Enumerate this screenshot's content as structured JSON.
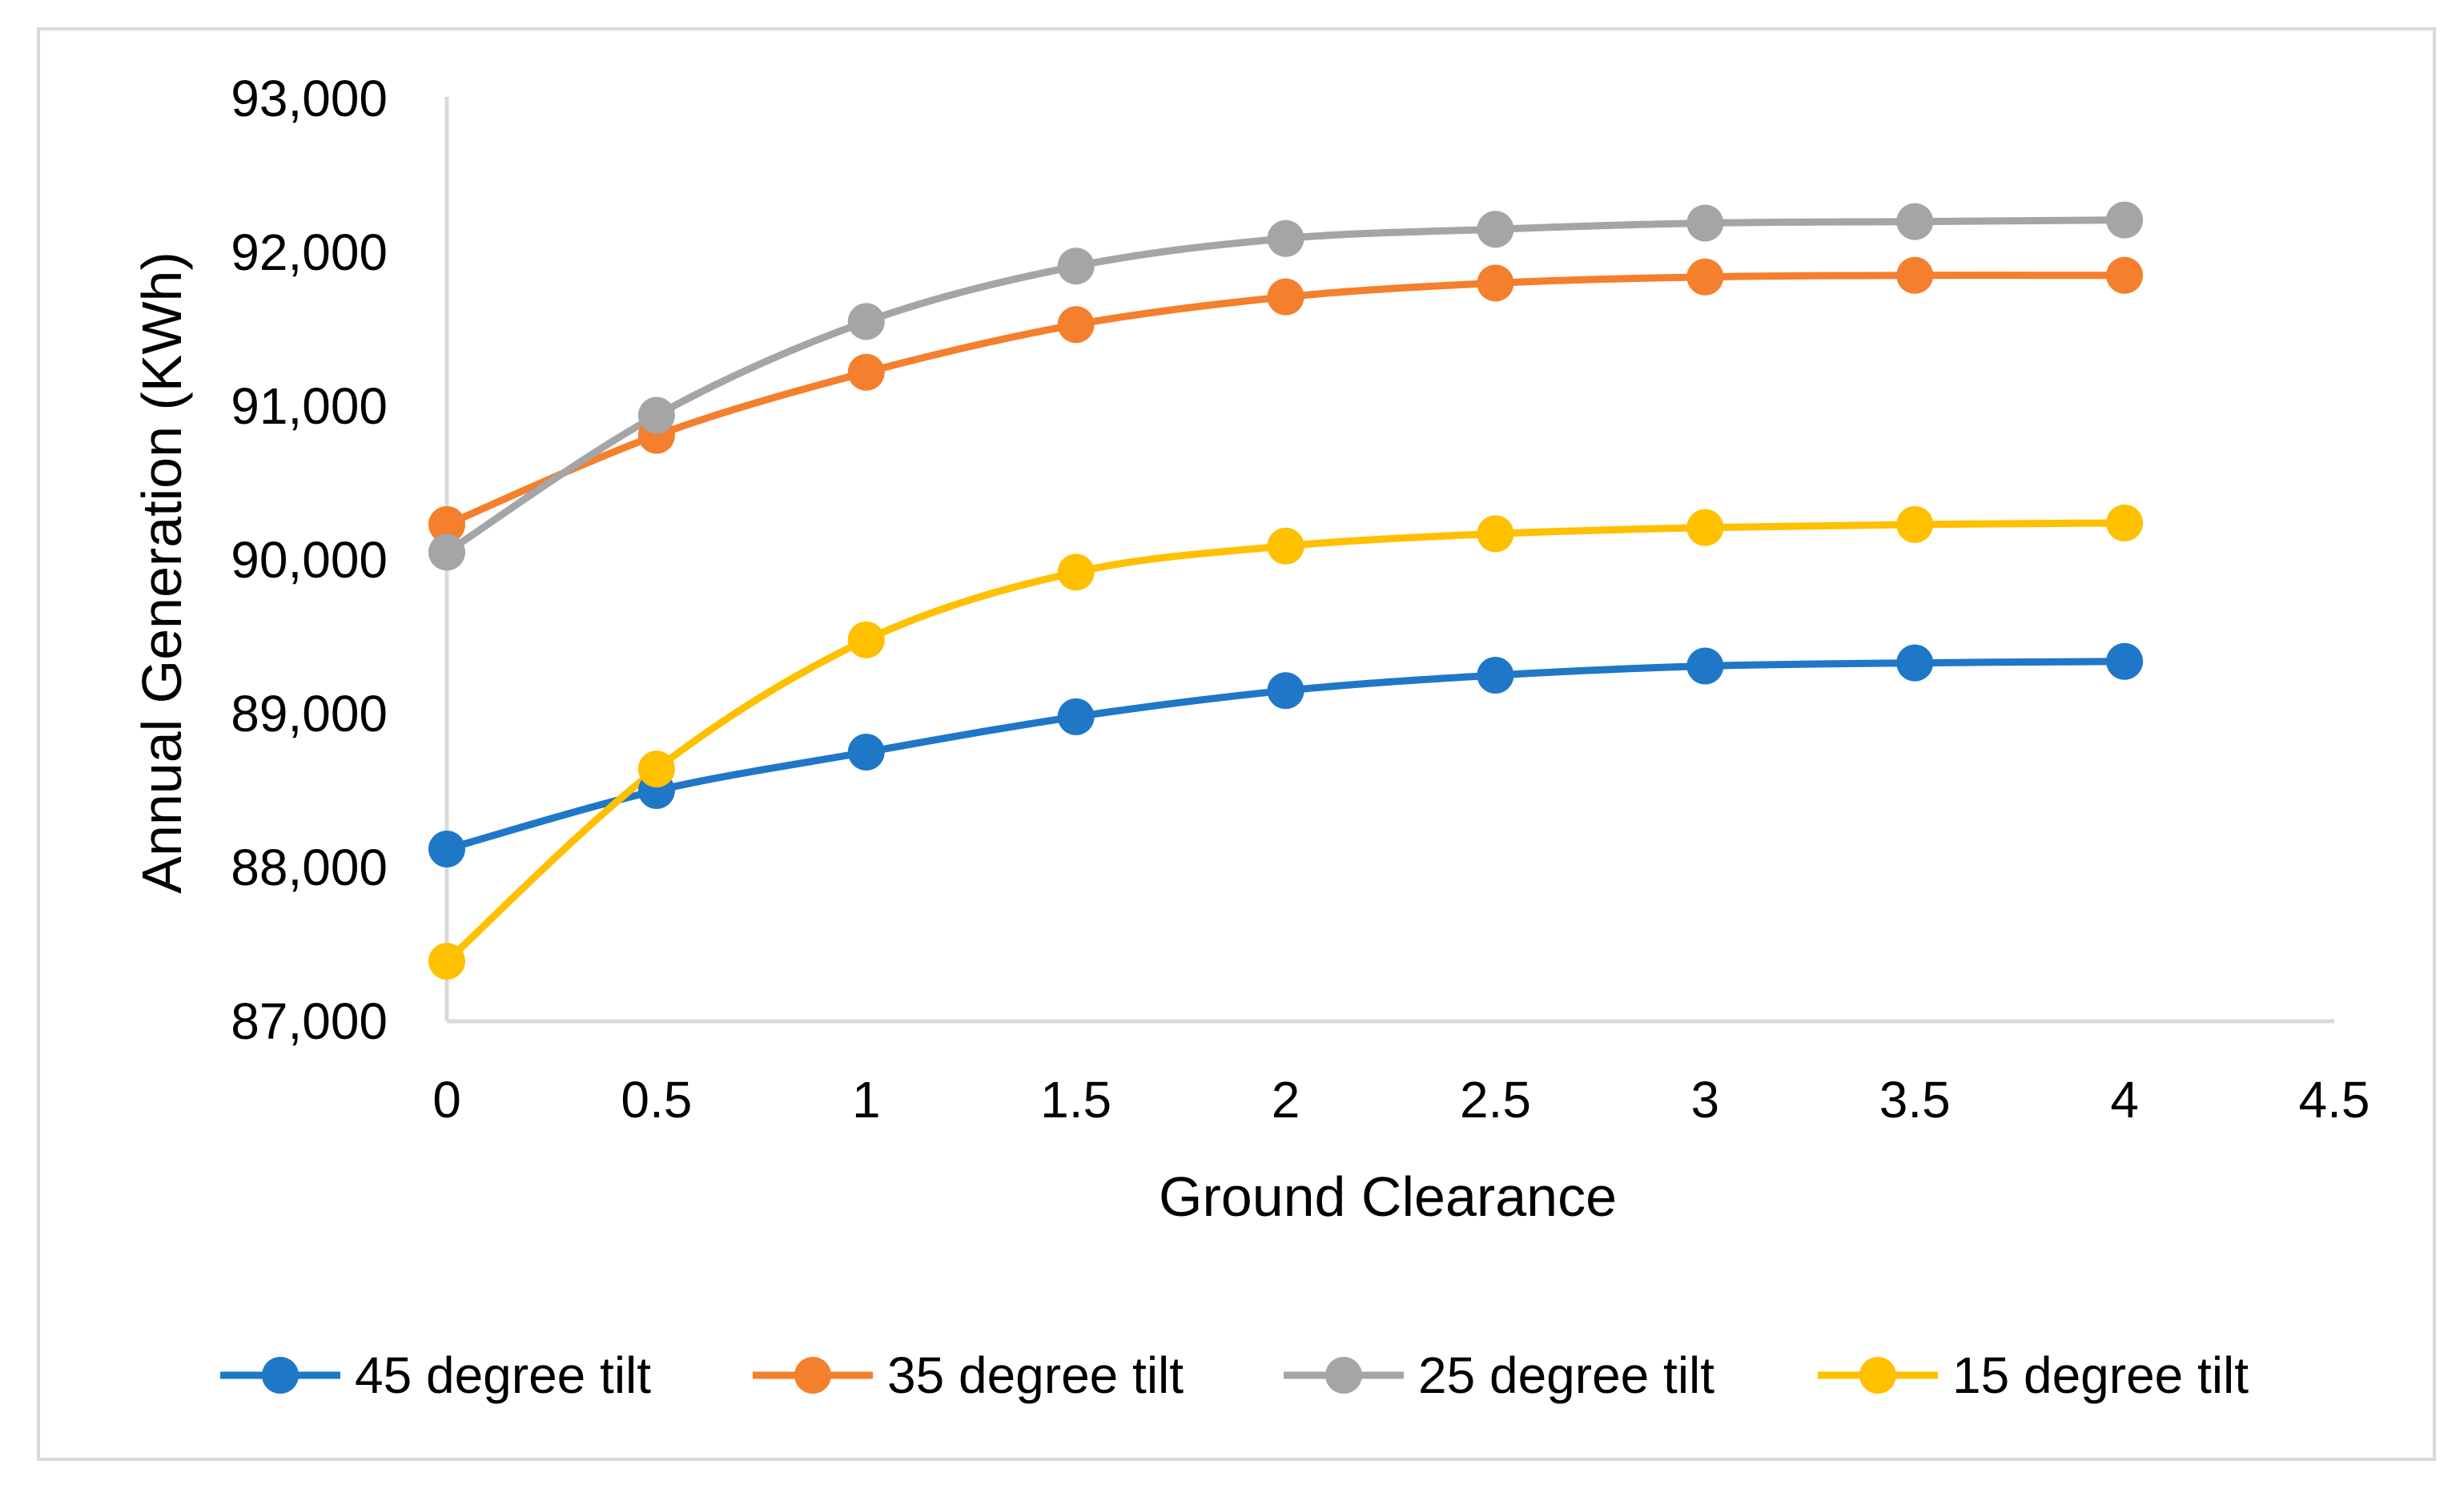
{
  "chart_data": {
    "type": "line",
    "title": "",
    "xlabel": "Ground Clearance",
    "ylabel": "Annual Generation (KWh)",
    "xlim": [
      0,
      4.5
    ],
    "ylim": [
      87000,
      93000
    ],
    "xticks": [
      0,
      0.5,
      1,
      1.5,
      2,
      2.5,
      3,
      3.5,
      4,
      4.5
    ],
    "xtick_labels": [
      "0",
      "0.5",
      "1",
      "1.5",
      "2",
      "2.5",
      "3",
      "3.5",
      "4",
      "4.5"
    ],
    "yticks": [
      87000,
      88000,
      89000,
      90000,
      91000,
      92000,
      93000
    ],
    "ytick_labels": [
      "87,000",
      "88,000",
      "89,000",
      "90,000",
      "91,000",
      "92,000",
      "93,000"
    ],
    "grid": false,
    "smooth": true,
    "legend_position": "bottom",
    "x": [
      0,
      0.5,
      1,
      1.5,
      2,
      2.5,
      3,
      3.5,
      4
    ],
    "series": [
      {
        "name": "45 degree tilt",
        "color": "#1f77c8",
        "values": [
          88120,
          88500,
          88750,
          88980,
          89150,
          89250,
          89310,
          89330,
          89340
        ]
      },
      {
        "name": "35 degree tilt",
        "color": "#f47f2c",
        "values": [
          90230,
          90810,
          91220,
          91530,
          91710,
          91800,
          91840,
          91850,
          91850
        ]
      },
      {
        "name": "25 degree tilt",
        "color": "#a5a5a5",
        "values": [
          90050,
          90940,
          91550,
          91910,
          92090,
          92150,
          92190,
          92200,
          92210
        ]
      },
      {
        "name": "15 degree tilt",
        "color": "#ffc000",
        "values": [
          87390,
          88640,
          89480,
          89920,
          90090,
          90170,
          90210,
          90230,
          90240
        ]
      }
    ]
  }
}
